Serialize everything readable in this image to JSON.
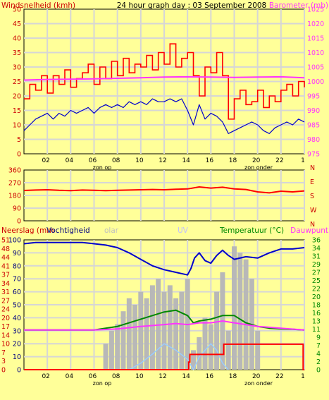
{
  "header": {
    "left_label": "Windsnelheid (kmh)",
    "title": "24 hour graph day : 03 September 2008",
    "right_label": "Barometer (mb)"
  },
  "x_ticks": [
    "02",
    "04",
    "06",
    "08",
    "10",
    "12",
    "14",
    "16",
    "18",
    "20",
    "22",
    "1"
  ],
  "annotations": {
    "sunrise": "zon op",
    "sunset": "zon onder"
  },
  "colors": {
    "background": "#ffff99",
    "grid": "#d6d6d6",
    "wind": "#ff0000",
    "gust": "#cc0000",
    "avg_wind": "#0000cc",
    "barometer": "#ff33ff",
    "direction": "#ff0000",
    "humidity": "#0000cc",
    "temperature": "#008800",
    "dewpoint": "#ff33ff",
    "rain": "#ff0000",
    "solar": "#b8b8b8",
    "uv": "#99ccff"
  },
  "panel2": {
    "compass": [
      "N",
      "W",
      "S",
      "E",
      "N"
    ]
  },
  "panel3": {
    "labels": {
      "rain": "Neerslag (mm",
      "humidity": "Vochtigheid",
      "solar": "olar",
      "uv": "UV",
      "temperature": "Temperatuur (°C)",
      "dewpoint": "Dauwpunt"
    }
  },
  "chart_data": [
    {
      "type": "line",
      "left_axis": {
        "title": "Windsnelheid (kmh)",
        "range": [
          0,
          50
        ],
        "ticks": [
          "0",
          "5",
          "10",
          "15",
          "20",
          "25",
          "30",
          "35",
          "40",
          "45",
          "50"
        ]
      },
      "right_axis": {
        "title": "Barometer (mb)",
        "range": [
          975,
          1025
        ],
        "ticks": [
          "975",
          "980",
          "985",
          "990",
          "995",
          "1000",
          "1005",
          "1010",
          "1015",
          "1020",
          "1025"
        ]
      },
      "x_range": [
        0,
        24
      ],
      "series": [
        {
          "key": "wind_gust",
          "axis": "left",
          "x": [
            0,
            0.5,
            1,
            1.5,
            2,
            2.5,
            3,
            3.5,
            4,
            4.5,
            5,
            5.5,
            6,
            6.5,
            7,
            7.5,
            8,
            8.5,
            9,
            9.5,
            10,
            10.5,
            11,
            11.5,
            12,
            12.5,
            13,
            13.5,
            14,
            14.5,
            15,
            15.5,
            16,
            16.5,
            17,
            17.5,
            18,
            18.5,
            19,
            19.5,
            20,
            20.5,
            21,
            21.5,
            22,
            22.5,
            23,
            23.5,
            24
          ],
          "y": [
            19,
            24,
            22,
            27,
            21,
            27,
            24,
            29,
            23,
            26,
            28,
            31,
            24,
            30,
            26,
            32,
            27,
            33,
            28,
            31,
            30,
            34,
            29,
            35,
            31,
            38,
            30,
            33,
            35,
            27,
            20,
            30,
            28,
            35,
            27,
            12,
            19,
            22,
            17,
            18,
            22,
            16,
            20,
            18,
            22,
            24,
            20,
            25,
            23
          ]
        },
        {
          "key": "wind_avg",
          "axis": "left",
          "x": [
            0,
            0.5,
            1,
            1.5,
            2,
            2.5,
            3,
            3.5,
            4,
            4.5,
            5,
            5.5,
            6,
            6.5,
            7,
            7.5,
            8,
            8.5,
            9,
            9.5,
            10,
            10.5,
            11,
            11.5,
            12,
            12.5,
            13,
            13.5,
            14,
            14.5,
            15,
            15.5,
            16,
            16.5,
            17,
            17.5,
            18,
            18.5,
            19,
            19.5,
            20,
            20.5,
            21,
            21.5,
            22,
            22.5,
            23,
            23.5,
            24
          ],
          "y": [
            8,
            10,
            12,
            13,
            14,
            12,
            14,
            13,
            15,
            14,
            15,
            16,
            14,
            16,
            17,
            16,
            17,
            16,
            18,
            17,
            18,
            17,
            19,
            18,
            18,
            19,
            18,
            19,
            15,
            10,
            17,
            12,
            14,
            13,
            11,
            7,
            8,
            9,
            10,
            11,
            10,
            8,
            7,
            9,
            10,
            11,
            10,
            12,
            11
          ]
        },
        {
          "key": "barometer",
          "axis": "right",
          "x": [
            0,
            2,
            4,
            6,
            8,
            10,
            12,
            14,
            16,
            18,
            20,
            22,
            24
          ],
          "y": [
            1000.5,
            1000.7,
            1000.8,
            1000.9,
            1001.1,
            1001.3,
            1001.5,
            1001.6,
            1001.5,
            1001.4,
            1001.5,
            1001.6,
            1001.3
          ]
        }
      ]
    },
    {
      "type": "line",
      "left_axis": {
        "range": [
          0,
          360
        ],
        "ticks": [
          "0",
          "90",
          "180",
          "270",
          "360"
        ]
      },
      "x_range": [
        0,
        24
      ],
      "series": [
        {
          "key": "wind_direction",
          "x": [
            0,
            1,
            2,
            3,
            4,
            5,
            6,
            7,
            8,
            9,
            10,
            11,
            12,
            13,
            14,
            15,
            16,
            17,
            18,
            19,
            20,
            21,
            22,
            23,
            24
          ],
          "y": [
            215,
            218,
            220,
            216,
            214,
            218,
            216,
            214,
            216,
            218,
            220,
            222,
            220,
            224,
            226,
            240,
            232,
            238,
            226,
            222,
            205,
            198,
            210,
            205,
            212
          ]
        }
      ]
    },
    {
      "type": "line",
      "left_axis": {
        "title": "Neerslag (mm",
        "ticks": [
          "0",
          "3",
          "7",
          "10",
          "14",
          "17",
          "20",
          "24",
          "27",
          "31",
          "34",
          "37",
          "41",
          "44",
          "48",
          "51"
        ]
      },
      "left_axis_inner": {
        "title": "Vochtigheid",
        "range": [
          0,
          100
        ],
        "ticks": [
          "0",
          "10",
          "20",
          "30",
          "40",
          "50",
          "60",
          "70",
          "80",
          "90",
          "100"
        ]
      },
      "right_axis": {
        "title": "Temperatuur (°C)",
        "range": [
          0,
          36
        ],
        "ticks": [
          "0",
          "2",
          "4",
          "7",
          "9",
          "11",
          "13",
          "16",
          "18",
          "20",
          "22",
          "25",
          "27",
          "29",
          "31",
          "34",
          "36"
        ]
      },
      "x_range": [
        0,
        24
      ],
      "series": [
        {
          "key": "humidity",
          "axis": "inner_left",
          "x": [
            0,
            1,
            2,
            3,
            4,
            5,
            6,
            7,
            8,
            9,
            10,
            11,
            12,
            13,
            14,
            14.3,
            14.6,
            15,
            15.5,
            16,
            16.5,
            17,
            17.5,
            18,
            19,
            20,
            21,
            22,
            23,
            24
          ],
          "y": [
            97,
            98,
            98,
            98,
            98,
            98,
            97,
            96,
            94,
            90,
            85,
            80,
            77,
            75,
            73,
            78,
            86,
            90,
            84,
            82,
            88,
            92,
            88,
            85,
            87,
            86,
            90,
            93,
            93,
            94
          ]
        },
        {
          "key": "temperature",
          "axis": "right",
          "x": [
            0,
            2,
            4,
            6,
            7,
            8,
            9,
            10,
            11,
            12,
            13,
            14,
            14.5,
            15,
            16,
            17,
            18,
            19,
            20,
            21,
            22,
            23,
            24
          ],
          "y": [
            11,
            11,
            11,
            11,
            11.5,
            12,
            13,
            14,
            15,
            16,
            16.5,
            15,
            13,
            13.5,
            14,
            15,
            15,
            13,
            12,
            11.5,
            11.3,
            11.2,
            11
          ]
        },
        {
          "key": "dewpoint",
          "axis": "right",
          "x": [
            0,
            2,
            4,
            6,
            8,
            10,
            12,
            13,
            14,
            15,
            16,
            17,
            18,
            19,
            20,
            22,
            24
          ],
          "y": [
            11,
            11,
            11,
            11,
            11.3,
            12,
            12.5,
            12.8,
            12.5,
            13,
            13,
            13.5,
            13,
            12.5,
            12,
            11.5,
            11
          ]
        },
        {
          "key": "rain",
          "axis": "left",
          "x": [
            0,
            14,
            14.1,
            14.2,
            16.9,
            17,
            17.1,
            18,
            20,
            23.8,
            23.9,
            24
          ],
          "y": [
            0,
            0,
            3,
            6,
            6,
            6,
            10,
            10,
            10,
            10,
            0,
            0
          ]
        },
        {
          "key": "solar",
          "axis": "inner_left",
          "x": [
            6.5,
            7,
            7.5,
            8,
            8.5,
            9,
            9.5,
            10,
            10.5,
            11,
            11.5,
            12,
            12.5,
            13,
            13.5,
            14,
            14.5,
            15,
            15.5,
            16,
            16.5,
            17,
            17.5,
            18,
            18.5,
            19,
            19.5,
            20,
            20.5
          ],
          "y": [
            0,
            20,
            30,
            35,
            45,
            55,
            50,
            60,
            55,
            65,
            70,
            60,
            65,
            55,
            60,
            70,
            15,
            25,
            40,
            35,
            60,
            75,
            30,
            95,
            90,
            85,
            70,
            30,
            0
          ]
        },
        {
          "key": "uv",
          "axis": "inner_left",
          "x": [
            9,
            10,
            11,
            12,
            13,
            14,
            14.5,
            15,
            16,
            16.5,
            17,
            17.5
          ],
          "y": [
            0,
            5,
            12,
            20,
            15,
            8,
            0,
            10,
            20,
            15,
            5,
            0
          ]
        }
      ]
    }
  ]
}
